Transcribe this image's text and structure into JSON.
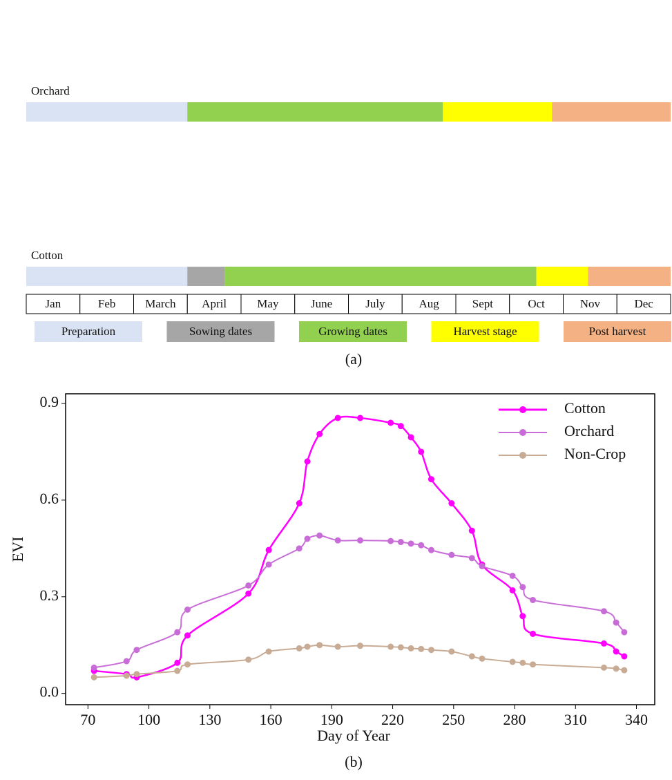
{
  "calendar": {
    "rows": [
      {
        "label": "Orchard",
        "segments": [
          {
            "color": "#dae3f3",
            "start": 0,
            "end": 3
          },
          {
            "color": "#92d050",
            "start": 3,
            "end": 7.76
          },
          {
            "color": "#ffff00",
            "start": 7.76,
            "end": 9.79
          },
          {
            "color": "#f4b183",
            "start": 9.79,
            "end": 12
          }
        ]
      },
      {
        "label": "Cotton",
        "segments": [
          {
            "color": "#dae3f3",
            "start": 0,
            "end": 3
          },
          {
            "color": "#a6a6a6",
            "start": 3,
            "end": 3.7
          },
          {
            "color": "#92d050",
            "start": 3.7,
            "end": 9.5
          },
          {
            "color": "#ffff00",
            "start": 9.5,
            "end": 10.46
          },
          {
            "color": "#f4b183",
            "start": 10.46,
            "end": 12
          }
        ]
      }
    ],
    "months": [
      "Jan",
      "Feb",
      "March",
      "April",
      "May",
      "June",
      "July",
      "Aug",
      "Sept",
      "Oct",
      "Nov",
      "Dec"
    ],
    "stages": [
      {
        "label": "Preparation",
        "color": "#dae3f3"
      },
      {
        "label": "Sowing dates",
        "color": "#a6a6a6"
      },
      {
        "label": "Growing dates",
        "color": "#92d050"
      },
      {
        "label": "Harvest stage",
        "color": "#ffff00"
      },
      {
        "label": "Post harvest",
        "color": "#f4b183"
      }
    ],
    "caption": "(a)"
  },
  "chart_data": {
    "type": "line",
    "x_label": "Day of Year",
    "y_label": "EVI",
    "caption": "(b)",
    "x": [
      73,
      89,
      94,
      114,
      119,
      149,
      159,
      174,
      178,
      184,
      193,
      204,
      219,
      224,
      229,
      234,
      239,
      249,
      259,
      264,
      279,
      284,
      289,
      324,
      330,
      334
    ],
    "series": [
      {
        "name": "Cotton",
        "color": "#ff00ff",
        "values": [
          0.07,
          0.06,
          0.05,
          0.095,
          0.18,
          0.31,
          0.445,
          0.59,
          0.72,
          0.805,
          0.855,
          0.855,
          0.84,
          0.83,
          0.795,
          0.75,
          0.665,
          0.59,
          0.505,
          0.4,
          0.32,
          0.24,
          0.185,
          0.155,
          0.13,
          0.115
        ]
      },
      {
        "name": "Orchard",
        "color": "#c86dd7",
        "values": [
          0.08,
          0.1,
          0.135,
          0.19,
          0.26,
          0.335,
          0.4,
          0.45,
          0.48,
          0.49,
          0.475,
          0.475,
          0.473,
          0.47,
          0.465,
          0.46,
          0.445,
          0.43,
          0.42,
          0.395,
          0.365,
          0.33,
          0.29,
          0.255,
          0.22,
          0.19
        ]
      },
      {
        "name": "Non-Crop",
        "color": "#c8ab94",
        "values": [
          0.05,
          0.055,
          0.06,
          0.07,
          0.09,
          0.105,
          0.13,
          0.14,
          0.145,
          0.15,
          0.145,
          0.148,
          0.145,
          0.143,
          0.14,
          0.138,
          0.135,
          0.13,
          0.115,
          0.108,
          0.098,
          0.095,
          0.09,
          0.08,
          0.077,
          0.072
        ]
      }
    ],
    "xlim": [
      59,
      349
    ],
    "ylim": [
      -0.035,
      0.93
    ],
    "xticks": [
      70,
      100,
      130,
      160,
      190,
      220,
      250,
      280,
      310,
      340
    ],
    "yticks": [
      {
        "value": 0,
        "label": "0.0"
      },
      0.3,
      0.6,
      0.9
    ],
    "legend": "upper right"
  }
}
